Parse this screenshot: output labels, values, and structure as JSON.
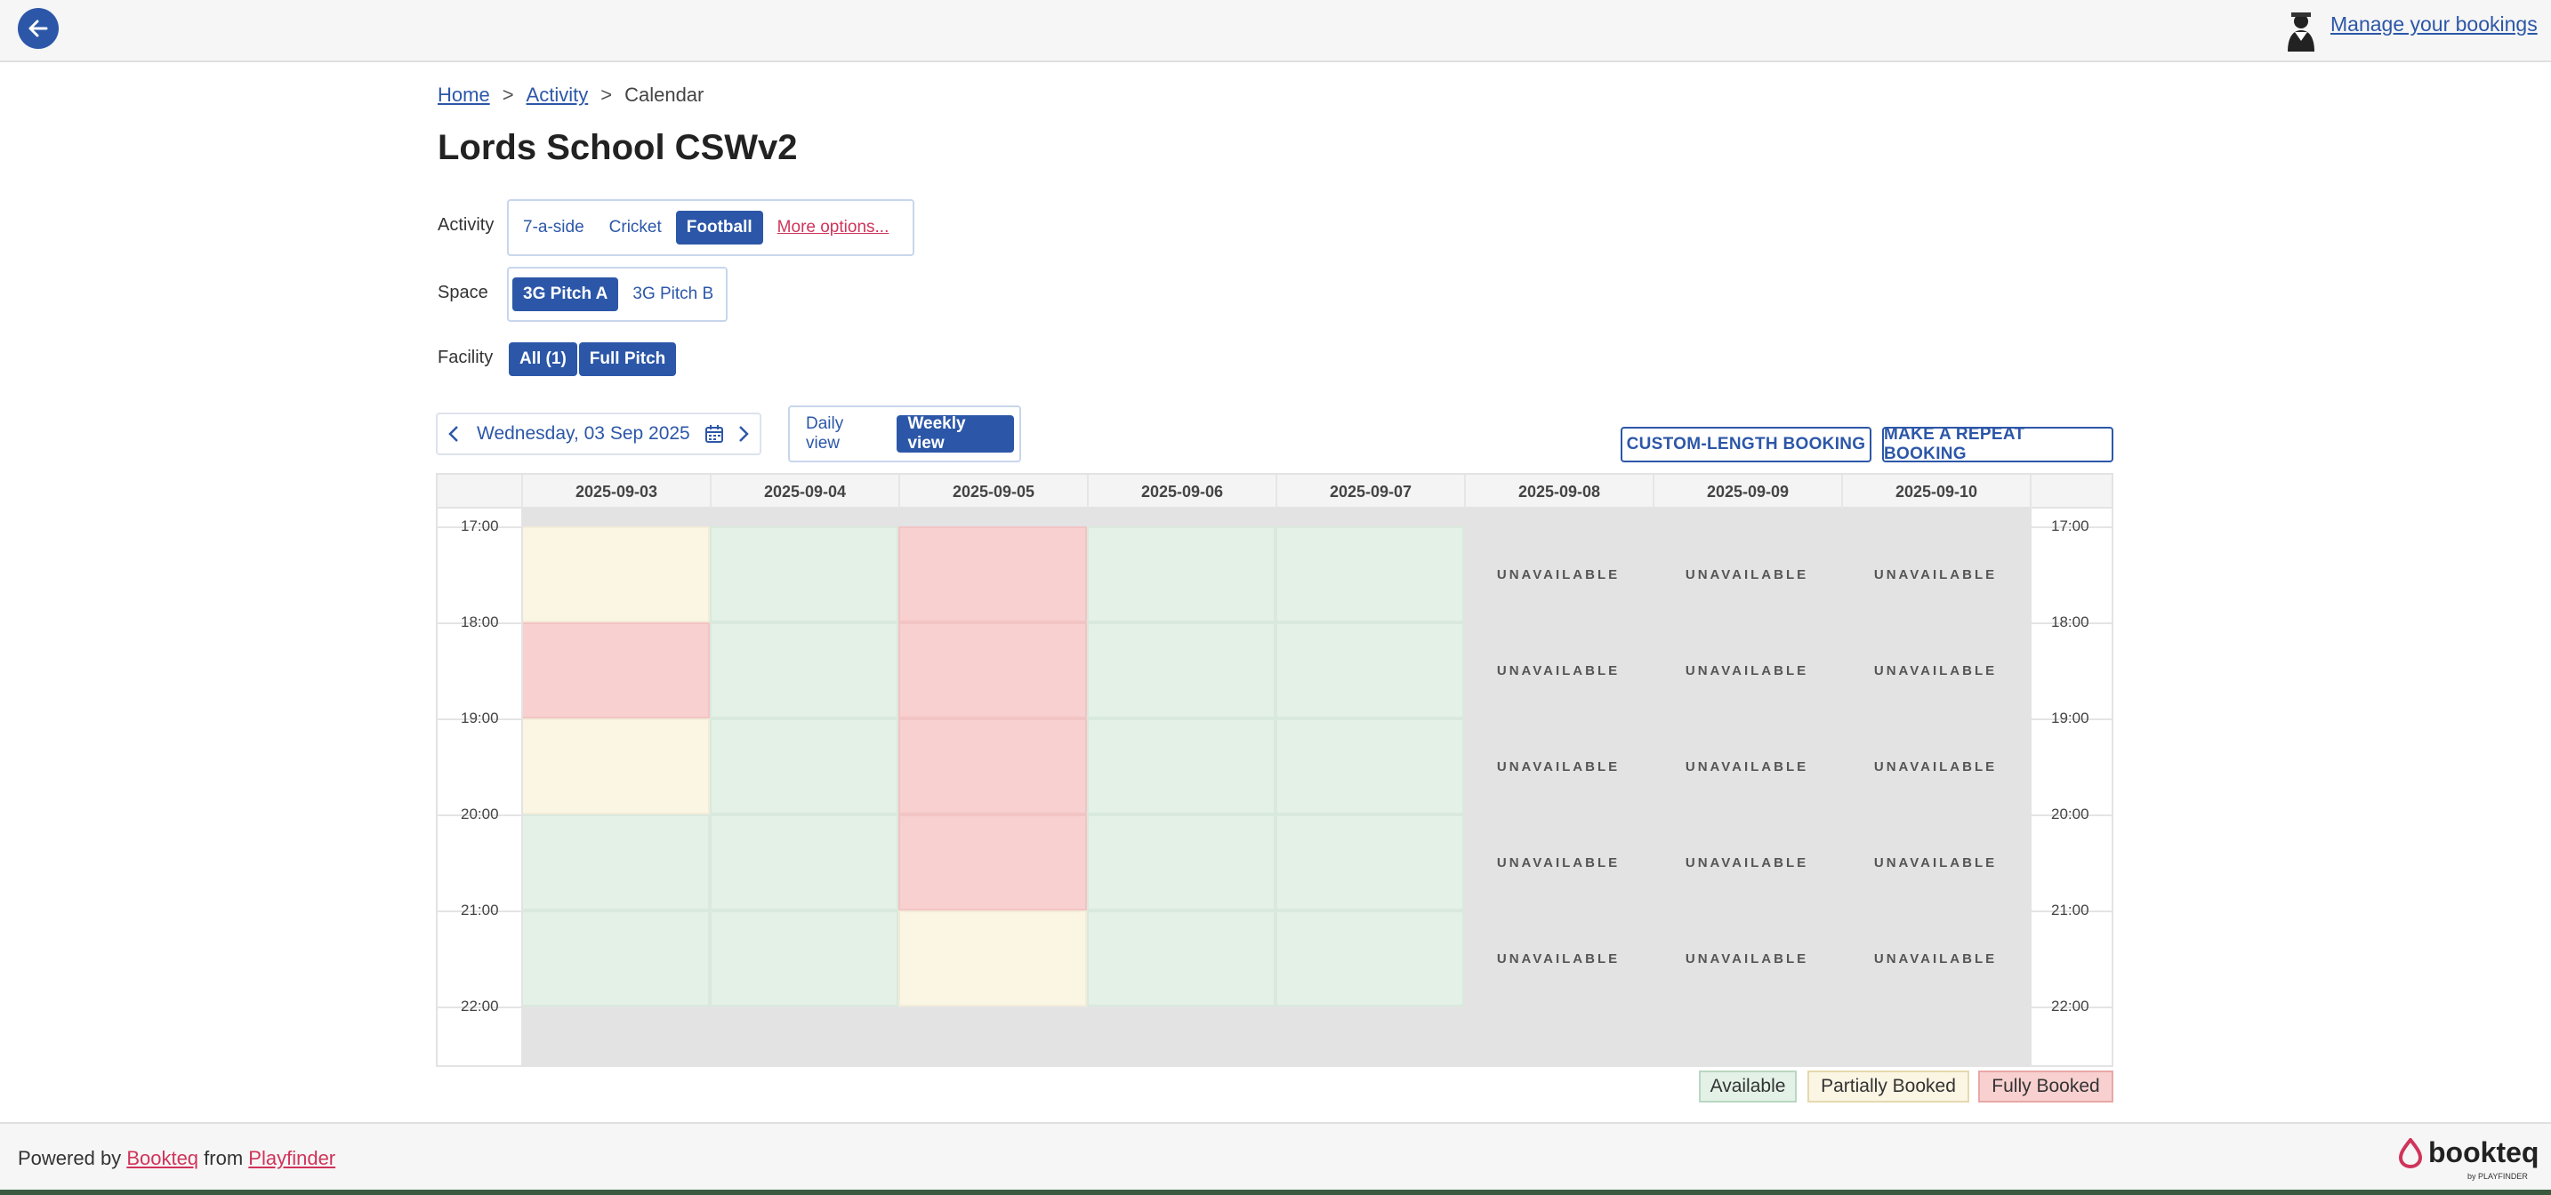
{
  "header": {
    "manage_link": "Manage your bookings"
  },
  "breadcrumb": {
    "home": "Home",
    "activity": "Activity",
    "current": "Calendar",
    "separator": ">"
  },
  "page_title": "Lords School CSWv2",
  "filters": {
    "activity": {
      "label": "Activity",
      "options": [
        "7-a-side",
        "Cricket",
        "Football"
      ],
      "selected": "Football",
      "more": "More options..."
    },
    "space": {
      "label": "Space",
      "options": [
        "3G Pitch A",
        "3G Pitch B"
      ],
      "selected": "3G Pitch A"
    },
    "facility": {
      "label": "Facility",
      "options": [
        "All (1)",
        "Full Pitch"
      ]
    }
  },
  "date_nav": {
    "value": "Wednesday, 03 Sep 2025"
  },
  "views": {
    "daily": "Daily view",
    "weekly": "Weekly view",
    "selected": "weekly"
  },
  "actions": {
    "custom_length": "CUSTOM-LENGTH BOOKING",
    "repeat": "MAKE A REPEAT BOOKING"
  },
  "calendar": {
    "days": [
      "2025-09-03",
      "2025-09-04",
      "2025-09-05",
      "2025-09-06",
      "2025-09-07",
      "2025-09-08",
      "2025-09-09",
      "2025-09-10"
    ],
    "times": [
      "17:00",
      "18:00",
      "19:00",
      "20:00",
      "21:00",
      "22:00"
    ],
    "unavailable_label": "UNAVAILABLE",
    "slots": [
      [
        "partial",
        "full",
        "partial",
        "available",
        "available"
      ],
      [
        "available",
        "available",
        "available",
        "available",
        "available"
      ],
      [
        "full",
        "full",
        "full",
        "full",
        "partial"
      ],
      [
        "available",
        "available",
        "available",
        "available",
        "available"
      ],
      [
        "available",
        "available",
        "available",
        "available",
        "available"
      ],
      [
        "unavailable",
        "unavailable",
        "unavailable",
        "unavailable",
        "unavailable"
      ],
      [
        "unavailable",
        "unavailable",
        "unavailable",
        "unavailable",
        "unavailable"
      ],
      [
        "unavailable",
        "unavailable",
        "unavailable",
        "unavailable",
        "unavailable"
      ]
    ],
    "status_colors": {
      "available": "#e3f1e7",
      "partial": "#fbf5e3",
      "full": "#f8d0d0",
      "unavailable": "#e3e3e3"
    }
  },
  "legend": {
    "available": "Available",
    "partial": "Partially Booked",
    "full": "Fully Booked"
  },
  "footer": {
    "powered_by": "Powered by",
    "bookteq": "Bookteq",
    "from": "from",
    "playfinder": "Playfinder",
    "brand": "bookteq",
    "brand_sub": "by PLAYFINDER"
  },
  "theme": {
    "primary": "#2c57a8",
    "link_pink": "#d0345a"
  }
}
